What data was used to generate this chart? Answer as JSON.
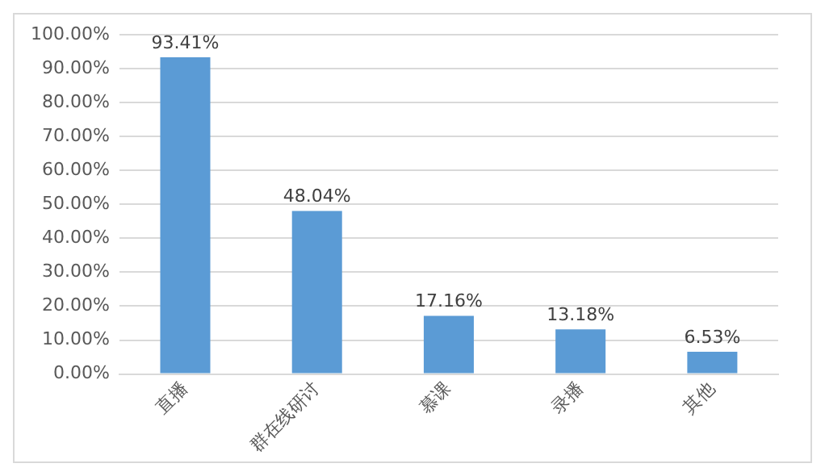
{
  "chart_data": {
    "type": "bar",
    "categories": [
      "直播",
      "群在线研讨",
      "慕课",
      "录播",
      "其他"
    ],
    "values": [
      93.41,
      48.04,
      17.16,
      13.18,
      6.53
    ],
    "value_labels": [
      "93.41%",
      "48.04%",
      "17.16%",
      "13.18%",
      "6.53%"
    ],
    "color": "#5b9bd5",
    "ylim": [
      0,
      100
    ],
    "yticks": [
      {
        "value": 0,
        "label": "0.00%"
      },
      {
        "value": 10,
        "label": "10.00%"
      },
      {
        "value": 20,
        "label": "20.00%"
      },
      {
        "value": 30,
        "label": "30.00%"
      },
      {
        "value": 40,
        "label": "40.00%"
      },
      {
        "value": 50,
        "label": "50.00%"
      },
      {
        "value": 60,
        "label": "60.00%"
      },
      {
        "value": 70,
        "label": "70.00%"
      },
      {
        "value": 80,
        "label": "80.00%"
      },
      {
        "value": 90,
        "label": "90.00%"
      },
      {
        "value": 100,
        "label": "100.00%"
      }
    ],
    "grid": "y"
  }
}
